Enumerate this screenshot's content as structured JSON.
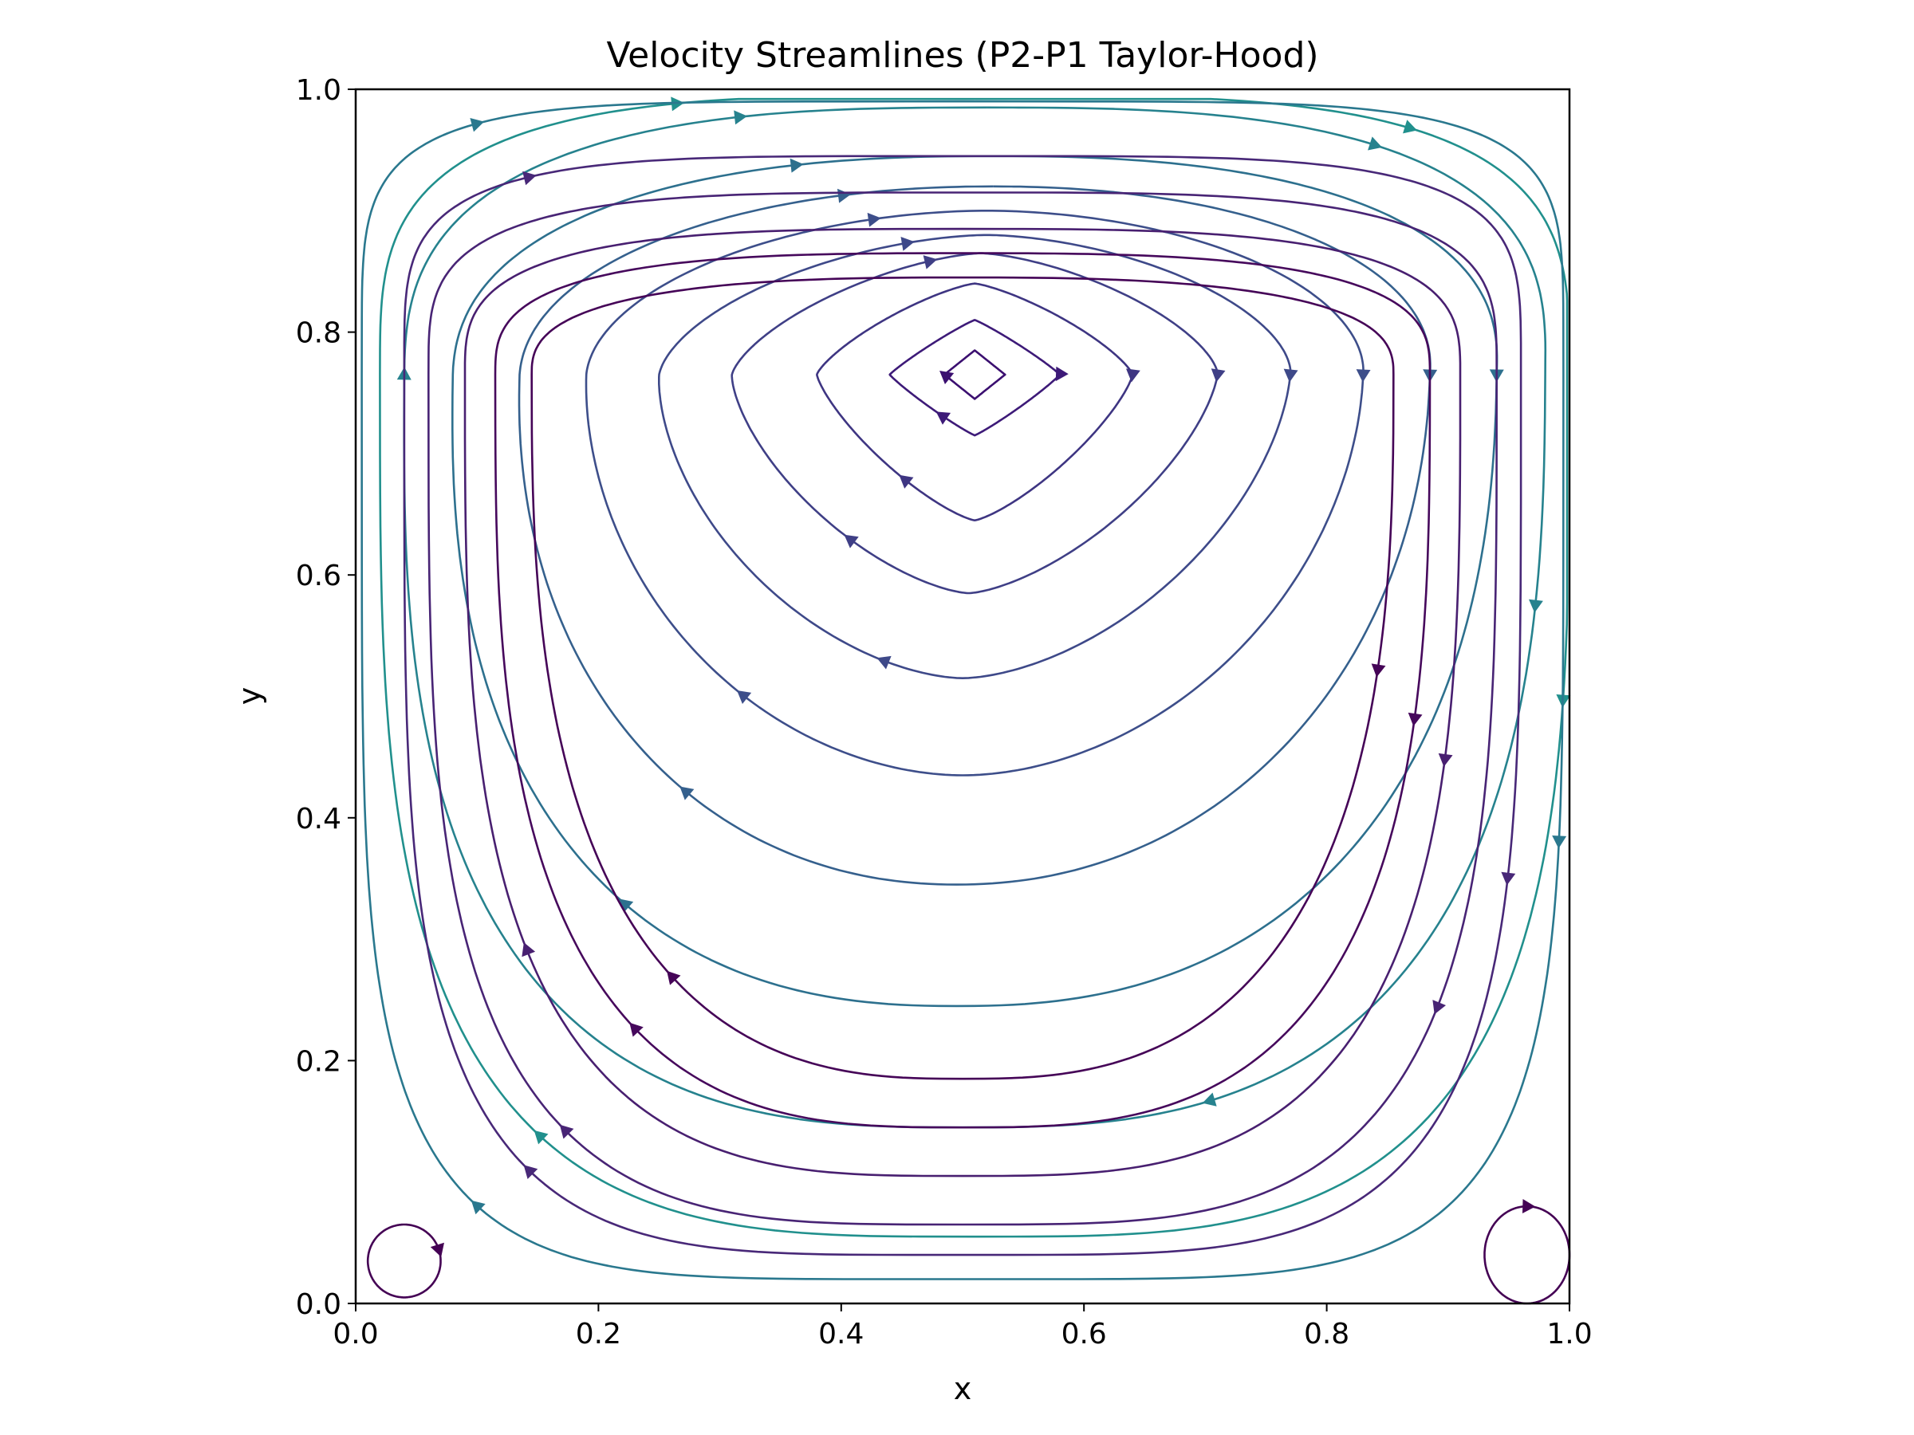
{
  "chart_data": {
    "type": "streamplot",
    "title": "Velocity Streamlines (P2-P1 Taylor-Hood)",
    "xlabel": "x",
    "ylabel": "y",
    "xlim": [
      0.0,
      1.0
    ],
    "ylim": [
      0.0,
      1.0
    ],
    "xticks": [
      "0.0",
      "0.2",
      "0.4",
      "0.6",
      "0.8",
      "1.0"
    ],
    "yticks": [
      "0.0",
      "0.2",
      "0.4",
      "0.6",
      "0.8",
      "1.0"
    ],
    "grid": false,
    "colormap": "viridis",
    "color_encodes": "speed",
    "primary_vortex_center": [
      0.51,
      0.76
    ],
    "secondary_vortices": [
      {
        "location": "bottom-left",
        "center": [
          0.04,
          0.04
        ]
      },
      {
        "location": "bottom-right",
        "center": [
          0.97,
          0.04
        ]
      }
    ],
    "lid_velocity_direction": "+x at y = 1.0",
    "streamlines": [
      {
        "center": [
          0.51,
          0.765
        ],
        "rx": 0.025,
        "ry_top": 0.02,
        "ry_bottom": 0.02,
        "n": 1.0,
        "shift": 0.0,
        "color": "#3b0f70",
        "arrows": [
          0.72
        ]
      },
      {
        "center": [
          0.51,
          0.765
        ],
        "rx": 0.07,
        "ry_top": 0.045,
        "ry_bottom": 0.05,
        "n": 1.1,
        "shift": 0.0,
        "color": "#3d1a78",
        "arrows": [
          0.25,
          0.6
        ]
      },
      {
        "center": [
          0.51,
          0.765
        ],
        "rx": 0.13,
        "ry_top": 0.075,
        "ry_bottom": 0.12,
        "n": 1.3,
        "shift": 0.0,
        "color": "#3e3582",
        "arrows": [
          0.25,
          0.6
        ]
      },
      {
        "center": [
          0.51,
          0.765
        ],
        "rx": 0.2,
        "ry_top": 0.1,
        "ry_bottom": 0.18,
        "n": 1.5,
        "shift": 0.005,
        "color": "#3f3f86",
        "arrows": [
          0.25,
          0.6,
          0.95
        ]
      },
      {
        "center": [
          0.51,
          0.765
        ],
        "rx": 0.26,
        "ry_top": 0.115,
        "ry_bottom": 0.25,
        "n": 1.7,
        "shift": 0.01,
        "color": "#3e4989",
        "arrows": [
          0.25,
          0.55,
          0.95
        ]
      },
      {
        "center": [
          0.51,
          0.765
        ],
        "rx": 0.32,
        "ry_top": 0.135,
        "ry_bottom": 0.33,
        "n": 1.9,
        "shift": 0.01,
        "color": "#3d4e8a",
        "arrows": [
          0.25,
          0.6,
          0.95
        ]
      },
      {
        "center": [
          0.51,
          0.765
        ],
        "rx": 0.375,
        "ry_top": 0.155,
        "ry_bottom": 0.42,
        "n": 2.1,
        "shift": 0.015,
        "color": "#35608d",
        "arrows": [
          0.25,
          0.6,
          0.95
        ]
      },
      {
        "center": [
          0.51,
          0.765
        ],
        "rx": 0.43,
        "ry_top": 0.18,
        "ry_bottom": 0.52,
        "n": 2.4,
        "shift": 0.015,
        "color": "#2d708e",
        "arrows": [
          0.25,
          0.6,
          0.95
        ]
      },
      {
        "center": [
          0.51,
          0.765
        ],
        "rx": 0.47,
        "ry_top": 0.22,
        "ry_bottom": 0.62,
        "n": 2.8,
        "shift": 0.01,
        "color": "#26828e",
        "arrows": [
          0.1,
          0.28,
          0.45,
          0.75,
          0.95
        ]
      },
      {
        "center": [
          0.51,
          0.765
        ],
        "rx": 0.49,
        "ry_top": 0.23,
        "ry_bottom": 0.71,
        "n": 3.4,
        "shift": 0.0,
        "color": "#21908d",
        "arrows": [
          0.1,
          0.28,
          0.6,
          0.95
        ]
      },
      {
        "center": [
          0.5,
          0.765
        ],
        "rx": 0.495,
        "ry_top": 0.225,
        "ry_bottom": 0.745,
        "n": 5.0,
        "shift": 0.0,
        "color": "#2a788e",
        "arrows": [
          0.28,
          0.6,
          0.9
        ]
      },
      {
        "center": [
          0.5,
          0.765
        ],
        "rx": 0.46,
        "ry_top": 0.18,
        "ry_bottom": 0.725,
        "n": 4.2,
        "shift": 0.0,
        "color": "#482878",
        "arrows": [
          0.3,
          0.6,
          0.9
        ]
      },
      {
        "center": [
          0.5,
          0.765
        ],
        "rx": 0.44,
        "ry_top": 0.15,
        "ry_bottom": 0.7,
        "n": 3.6,
        "shift": 0.0,
        "color": "#482475",
        "arrows": [
          0.35,
          0.6
        ]
      },
      {
        "center": [
          0.5,
          0.765
        ],
        "rx": 0.41,
        "ry_top": 0.12,
        "ry_bottom": 0.66,
        "n": 3.2,
        "shift": 0.0,
        "color": "#481f70",
        "arrows": [
          0.3,
          0.65
        ]
      },
      {
        "center": [
          0.5,
          0.765
        ],
        "rx": 0.385,
        "ry_top": 0.1,
        "ry_bottom": 0.62,
        "n": 3.0,
        "shift": 0.0,
        "color": "#46085c",
        "arrows": [
          0.3,
          0.6
        ]
      },
      {
        "center": [
          0.5,
          0.765
        ],
        "rx": 0.355,
        "ry_top": 0.08,
        "ry_bottom": 0.58,
        "n": 2.7,
        "shift": 0.0,
        "color": "#450457",
        "arrows": [
          0.3,
          0.6
        ]
      }
    ],
    "corner_eddies": [
      {
        "location": "bottom-left",
        "center": [
          0.04,
          0.035
        ],
        "rx": 0.03,
        "ry": 0.03,
        "color": "#440154",
        "arrows": [
          0.2
        ]
      },
      {
        "location": "bottom-right",
        "center": [
          0.965,
          0.04
        ],
        "rx": 0.035,
        "ry": 0.04,
        "color": "#440154",
        "arrows": [
          0.0
        ]
      }
    ]
  }
}
